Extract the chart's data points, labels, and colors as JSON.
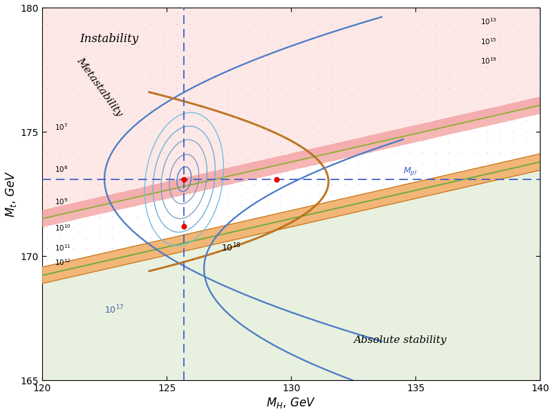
{
  "xlim": [
    120,
    140
  ],
  "ylim": [
    165,
    180
  ],
  "xlabel": "$M_H,\\,GeV$",
  "ylabel": "$M_t,\\,GeV$",
  "xticks": [
    120,
    125,
    130,
    135,
    140
  ],
  "yticks": [
    165,
    170,
    175,
    180
  ],
  "band_slope": 0.228,
  "band_b_green": 141.87,
  "band_orange_half": 0.33,
  "band_pink_half": 0.33,
  "instab_slope": 0.228,
  "instab_b": 144.15,
  "instability_color": "#fce8e6",
  "stability_color": "#e8f0df",
  "dot_color": "#c888c8",
  "blue_color": "#4060c8",
  "orange_color": "#c87820",
  "green_color": "#6aaa3a",
  "pt1": [
    125.7,
    173.1
  ],
  "pt2": [
    125.7,
    171.2
  ],
  "pt3": [
    129.4,
    173.1
  ],
  "hline_y": 173.1,
  "vline_x": 125.7,
  "Mpl_x": 134.5,
  "Mpl_y": 173.35,
  "left_labels": [
    [
      120.5,
      175.2,
      "$10^7$"
    ],
    [
      120.5,
      173.5,
      "$10^8$"
    ],
    [
      120.5,
      172.2,
      "$10^9$"
    ],
    [
      120.5,
      171.15,
      "$10^{10}$"
    ],
    [
      120.5,
      170.35,
      "$10^{11}$"
    ],
    [
      120.5,
      169.75,
      "$10^{12}$"
    ]
  ],
  "right_labels": [
    [
      137.6,
      179.45,
      "$10^{13}$"
    ],
    [
      137.6,
      178.65,
      "$10^{15}$"
    ],
    [
      137.6,
      177.85,
      "$10^{19}$"
    ]
  ]
}
